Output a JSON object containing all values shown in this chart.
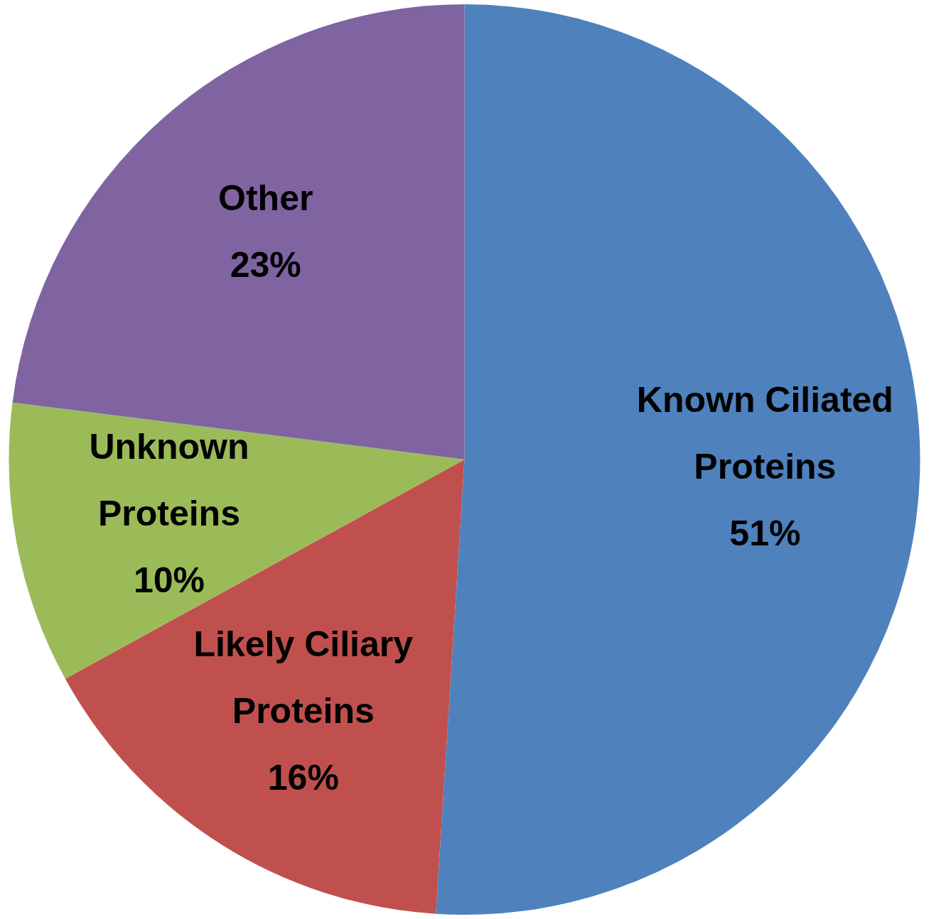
{
  "chart_data": {
    "type": "pie",
    "categories": [
      "Known Ciliated Proteins",
      "Likely Ciliary Proteins",
      "Unknown Proteins",
      "Other"
    ],
    "values": [
      51,
      16,
      10,
      23
    ],
    "value_labels": [
      "51%",
      "16%",
      "10%",
      "23%"
    ],
    "colors": [
      "#4f81bd",
      "#c0504d",
      "#9bbb59",
      "#8064a2"
    ]
  }
}
